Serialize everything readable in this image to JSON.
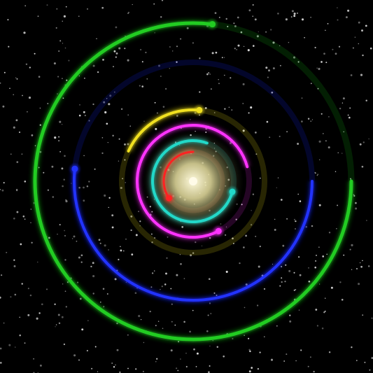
{
  "background_color": "#000000",
  "star_color": "#d8d8d8",
  "sun": {
    "core_color": "#fffbe0",
    "glow_color": "#e8e0a0"
  },
  "orbits": [
    {
      "name": "red",
      "color": "#ff2222",
      "trail_color": "#ff6644"
    },
    {
      "name": "cyan",
      "color": "#22d8c8",
      "trail_color": "#22c8b8"
    },
    {
      "name": "magenta",
      "color": "#ff33ff",
      "trail_color": "#cc22cc"
    },
    {
      "name": "yellow",
      "color": "#f0e020",
      "trail_color": "#e0d010"
    },
    {
      "name": "blue",
      "color": "#2233ff",
      "trail_color": "#1122ee"
    },
    {
      "name": "green",
      "color": "#22cc22",
      "trail_color": "#11aa11"
    }
  ]
}
